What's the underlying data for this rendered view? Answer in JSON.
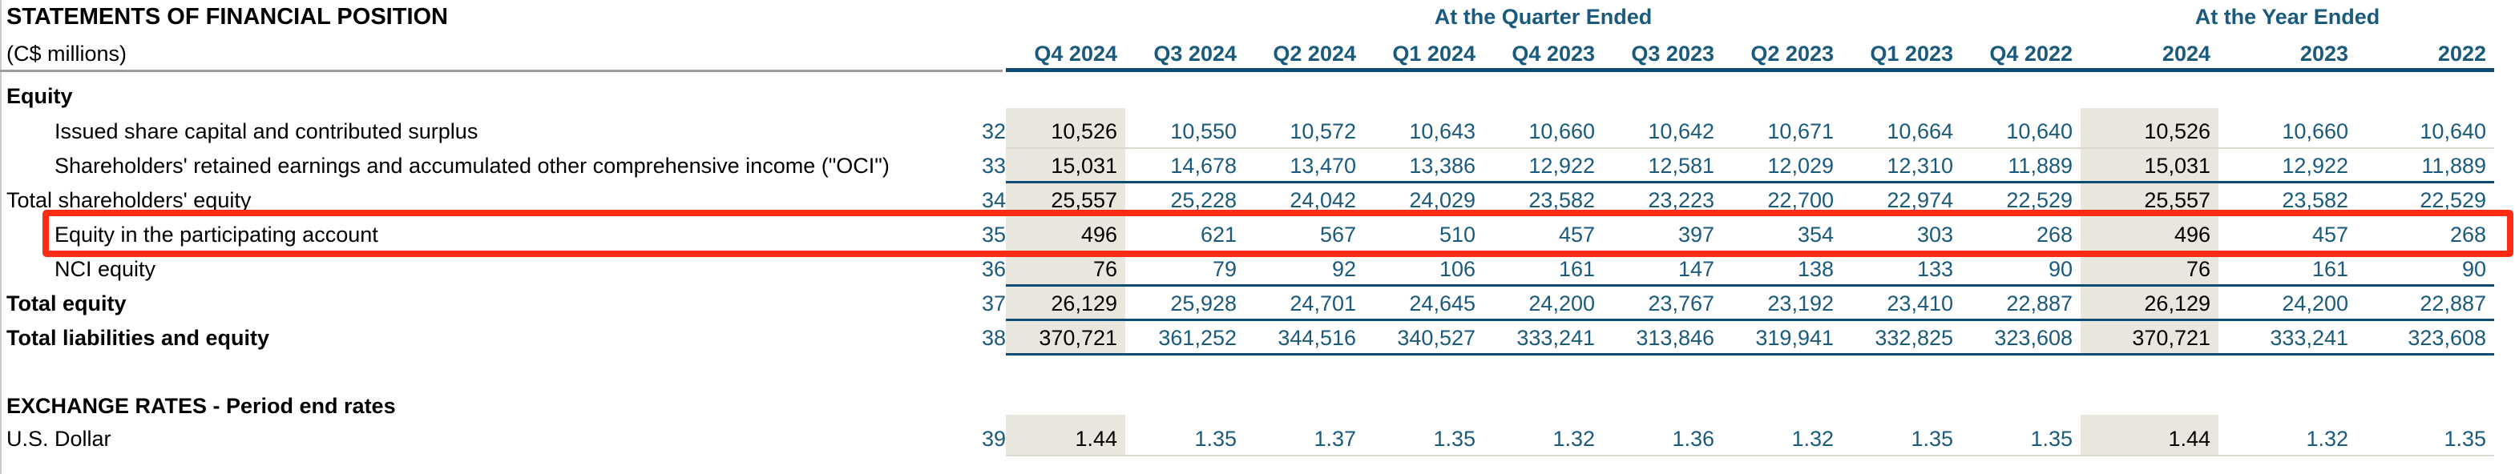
{
  "title": "STATEMENTS OF FINANCIAL POSITION",
  "units_label": "(C$ millions)",
  "column_groups": {
    "quarter": "At the Quarter Ended",
    "year": "At the Year Ended"
  },
  "columns": {
    "quarters": [
      "Q4 2024",
      "Q3 2024",
      "Q2 2024",
      "Q1 2024",
      "Q4 2023",
      "Q3 2023",
      "Q2 2023",
      "Q1 2023",
      "Q4 2022"
    ],
    "years": [
      "2024",
      "2023",
      "2022"
    ]
  },
  "colors": {
    "accent_text": "#1a5a7d",
    "accent_line": "#0f4c73",
    "column_highlight": "#e9e6dd",
    "annotation_red": "#fe2b15"
  },
  "sections": [
    {
      "heading": "Equity",
      "rows": [
        {
          "num": "32",
          "label": "Issued share capital and contributed surplus",
          "indent": true,
          "bold": false,
          "highlight": false,
          "rule_below": "light",
          "quarters": [
            "10,526",
            "10,550",
            "10,572",
            "10,643",
            "10,660",
            "10,642",
            "10,671",
            "10,664",
            "10,640"
          ],
          "years": [
            "10,526",
            "10,660",
            "10,640"
          ]
        },
        {
          "num": "33",
          "label": "Shareholders' retained earnings and accumulated other comprehensive income (\"OCI\")",
          "indent": true,
          "bold": false,
          "highlight": false,
          "rule_below": "teal",
          "quarters": [
            "15,031",
            "14,678",
            "13,470",
            "13,386",
            "12,922",
            "12,581",
            "12,029",
            "12,310",
            "11,889"
          ],
          "years": [
            "15,031",
            "12,922",
            "11,889"
          ]
        },
        {
          "num": "34",
          "label": "Total shareholders' equity",
          "indent": false,
          "bold": false,
          "highlight": false,
          "rule_below": "none",
          "quarters": [
            "25,557",
            "25,228",
            "24,042",
            "24,029",
            "23,582",
            "23,223",
            "22,700",
            "22,974",
            "22,529"
          ],
          "years": [
            "25,557",
            "23,582",
            "22,529"
          ]
        },
        {
          "num": "35",
          "label": "Equity in the participating account",
          "indent": true,
          "bold": false,
          "highlight": true,
          "rule_below": "light",
          "quarters": [
            "496",
            "621",
            "567",
            "510",
            "457",
            "397",
            "354",
            "303",
            "268"
          ],
          "years": [
            "496",
            "457",
            "268"
          ]
        },
        {
          "num": "36",
          "label": "NCI equity",
          "indent": true,
          "bold": false,
          "highlight": false,
          "rule_below": "teal",
          "quarters": [
            "76",
            "79",
            "92",
            "106",
            "161",
            "147",
            "138",
            "133",
            "90"
          ],
          "years": [
            "76",
            "161",
            "90"
          ]
        },
        {
          "num": "37",
          "label": "Total equity",
          "indent": false,
          "bold": true,
          "highlight": false,
          "rule_below": "teal",
          "quarters": [
            "26,129",
            "25,928",
            "24,701",
            "24,645",
            "24,200",
            "23,767",
            "23,192",
            "23,410",
            "22,887"
          ],
          "years": [
            "26,129",
            "24,200",
            "22,887"
          ]
        },
        {
          "num": "38",
          "label": "Total liabilities and equity",
          "indent": false,
          "bold": true,
          "highlight": false,
          "rule_below": "teal",
          "quarters": [
            "370,721",
            "361,252",
            "344,516",
            "340,527",
            "333,241",
            "313,846",
            "319,941",
            "332,825",
            "323,608"
          ],
          "years": [
            "370,721",
            "333,241",
            "323,608"
          ]
        }
      ]
    },
    {
      "heading": "EXCHANGE RATES - Period end rates",
      "rows": [
        {
          "num": "39",
          "label": "U.S. Dollar",
          "indent": false,
          "bold": false,
          "highlight": false,
          "rule_below": "light",
          "quarters": [
            "1.44",
            "1.35",
            "1.37",
            "1.35",
            "1.32",
            "1.36",
            "1.32",
            "1.35",
            "1.35"
          ],
          "years": [
            "1.44",
            "1.32",
            "1.35"
          ]
        }
      ]
    }
  ]
}
